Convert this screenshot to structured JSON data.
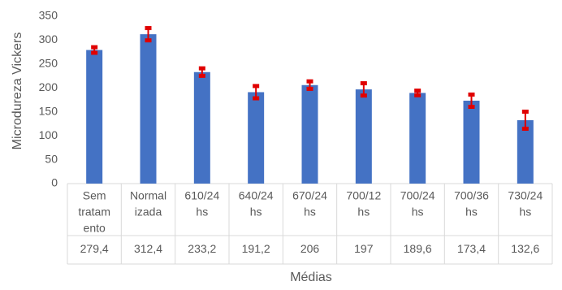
{
  "chart_data": {
    "type": "bar",
    "x_label": "Médias",
    "y_label": "Microdureza Vickers",
    "categories": [
      [
        "Sem",
        "tratam",
        "ento"
      ],
      [
        "Normal",
        "izada"
      ],
      [
        "610/24",
        "hs"
      ],
      [
        "640/24",
        "hs"
      ],
      [
        "670/24",
        "hs"
      ],
      [
        "700/12",
        "hs"
      ],
      [
        "700/24",
        "hs"
      ],
      [
        "700/36",
        "hs"
      ],
      [
        "730/24",
        "hs"
      ]
    ],
    "series": [
      {
        "color": "#4472c4",
        "error_color": "#e00000",
        "values": [
          279.4,
          312.4,
          233.2,
          191.2,
          206,
          197,
          189.6,
          173.4,
          132.6
        ],
        "value_labels": [
          "279,4",
          "312,4",
          "233,2",
          "191,2",
          "206",
          "197",
          "189,6",
          "173,4",
          "132,6"
        ],
        "errors": [
          5,
          12,
          7,
          12,
          7,
          12,
          4,
          12,
          17
        ]
      }
    ],
    "ylim": [
      0,
      350
    ],
    "yticks": [
      0,
      50,
      100,
      150,
      200,
      250,
      300,
      350
    ],
    "grid": false
  }
}
